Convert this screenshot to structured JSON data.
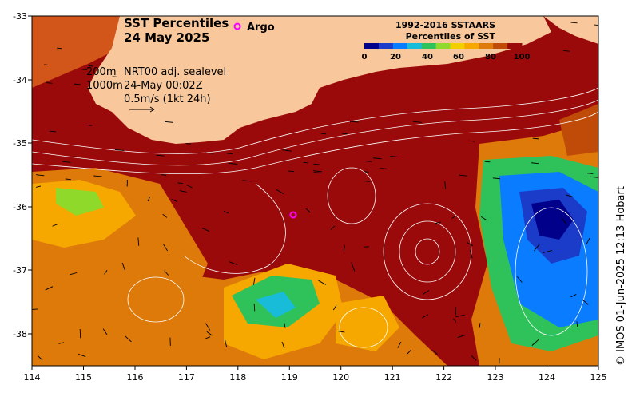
{
  "title": {
    "line1": "SST Percentiles",
    "line2": "24 May 2025"
  },
  "argo_label": "Argo",
  "legend": {
    "title1": "1992-2016 SSTAARS",
    "title2": "Percentiles of SST",
    "colors": [
      "#00008b",
      "#1a3cc8",
      "#0a7cff",
      "#19bcd8",
      "#2fc25a",
      "#8fd92a",
      "#f2d000",
      "#f6a800",
      "#de7a0a",
      "#c04a08",
      "#9b0a0a"
    ],
    "ticks": [
      "0",
      "20",
      "40",
      "60",
      "80",
      "100"
    ]
  },
  "info": {
    "depth1": "200m",
    "depth2": "1000m",
    "product": "NRT00 adj. sealevel",
    "time": "24-May 00:02Z",
    "velocity": "0.5m/s (1kt 24h)"
  },
  "axes": {
    "lon_ticks": [
      "114",
      "115",
      "116",
      "117",
      "118",
      "119",
      "120",
      "121",
      "122",
      "123",
      "124",
      "125"
    ],
    "lat_ticks": [
      "-33",
      "-34",
      "-35",
      "-36",
      "-37",
      "-38"
    ]
  },
  "map": {
    "lon_range": [
      114,
      125
    ],
    "lat_range": [
      -38.5,
      -33
    ],
    "land_color": "#f8c89c",
    "argo_color": "#ff00ff"
  },
  "credit": "© IMOS 01-Jun-2025 12:13 Hobart"
}
